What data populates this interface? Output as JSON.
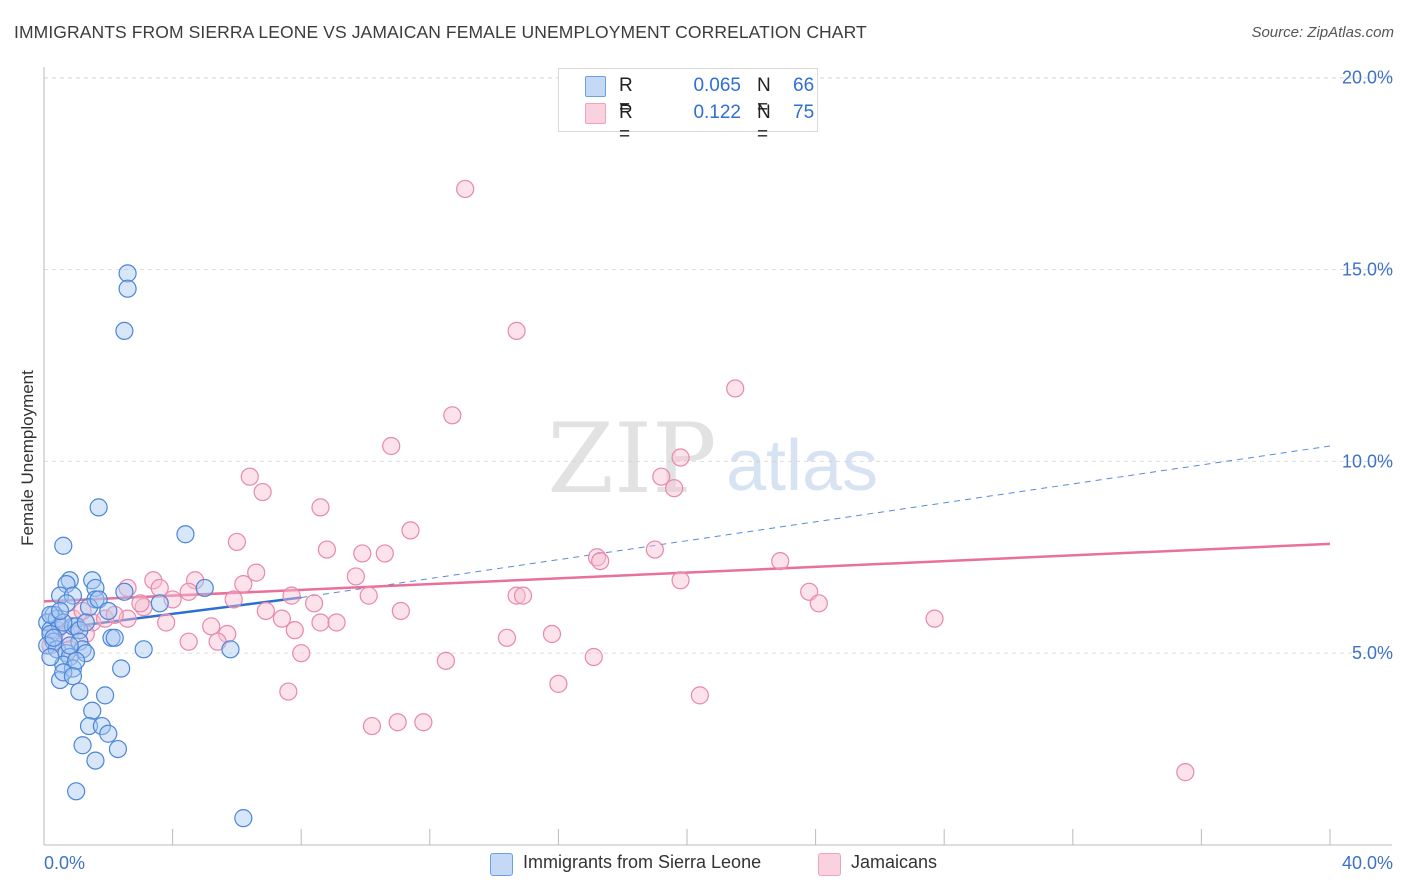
{
  "header": {
    "title": "IMMIGRANTS FROM SIERRA LEONE VS JAMAICAN FEMALE UNEMPLOYMENT CORRELATION CHART",
    "source": "Source: ZipAtlas.com"
  },
  "watermark": {
    "zip": "ZIP",
    "atlas": "atlas"
  },
  "colors": {
    "blue_fill": "#a9c8f2",
    "blue_stroke": "#4a86d8",
    "blue_line": "#2d6fd0",
    "pink_fill": "#f6bfd2",
    "pink_stroke": "#e888aa",
    "pink_line": "#e8709a",
    "axis_text": "#3d72c8",
    "grid": "#dddddd"
  },
  "legend": {
    "rows": [
      {
        "r_label": "R =",
        "r_value": "0.065",
        "n_label": "N =",
        "n_value": "66"
      },
      {
        "r_label": "R =",
        "r_value": "0.122",
        "n_label": "N =",
        "n_value": "75"
      }
    ],
    "bottom": [
      "Immigrants from Sierra Leone",
      "Jamaicans"
    ]
  },
  "chart_data": {
    "type": "scatter",
    "title": "IMMIGRANTS FROM SIERRA LEONE VS JAMAICAN FEMALE UNEMPLOYMENT CORRELATION CHART",
    "xlabel": "",
    "ylabel": "Female Unemployment",
    "xlim": [
      0,
      40
    ],
    "ylim": [
      0,
      20.8
    ],
    "x_tick_labels": [
      "0.0%",
      "40.0%"
    ],
    "y_ticks": [
      5,
      10,
      15,
      20
    ],
    "y_tick_labels": [
      "5.0%",
      "10.0%",
      "15.0%",
      "20.0%"
    ],
    "grid": true,
    "legend_position": "top-center",
    "series": [
      {
        "name": "Immigrants from Sierra Leone",
        "r": 0.065,
        "n": 66,
        "trend": {
          "x": [
            0,
            8.0
          ],
          "y": [
            5.6,
            6.45
          ],
          "dashed_extension": {
            "x": [
              8.0,
              40.0
            ],
            "y": [
              6.45,
              10.4
            ]
          }
        },
        "points": [
          [
            2.6,
            14.9
          ],
          [
            2.6,
            14.5
          ],
          [
            2.5,
            13.4
          ],
          [
            1.7,
            8.8
          ],
          [
            0.6,
            7.8
          ],
          [
            4.4,
            8.1
          ],
          [
            0.8,
            6.9
          ],
          [
            1.5,
            6.9
          ],
          [
            0.7,
            6.8
          ],
          [
            1.6,
            6.7
          ],
          [
            2.5,
            6.6
          ],
          [
            5.0,
            6.7
          ],
          [
            0.5,
            6.5
          ],
          [
            0.9,
            6.5
          ],
          [
            1.6,
            6.4
          ],
          [
            0.7,
            6.3
          ],
          [
            1.4,
            6.2
          ],
          [
            3.6,
            6.3
          ],
          [
            0.3,
            6.0
          ],
          [
            0.1,
            5.8
          ],
          [
            0.2,
            5.6
          ],
          [
            0.4,
            5.9
          ],
          [
            0.5,
            5.7
          ],
          [
            0.9,
            5.7
          ],
          [
            1.0,
            5.7
          ],
          [
            1.1,
            5.6
          ],
          [
            0.2,
            5.5
          ],
          [
            0.3,
            5.3
          ],
          [
            0.1,
            5.2
          ],
          [
            0.4,
            5.1
          ],
          [
            1.1,
            5.3
          ],
          [
            1.2,
            5.1
          ],
          [
            0.7,
            5.0
          ],
          [
            0.8,
            4.9
          ],
          [
            1.3,
            5.0
          ],
          [
            2.1,
            5.4
          ],
          [
            2.2,
            5.4
          ],
          [
            0.6,
            4.7
          ],
          [
            0.9,
            4.6
          ],
          [
            1.0,
            4.8
          ],
          [
            0.5,
            4.3
          ],
          [
            0.6,
            4.5
          ],
          [
            0.9,
            4.4
          ],
          [
            2.4,
            4.6
          ],
          [
            3.1,
            5.1
          ],
          [
            5.8,
            5.1
          ],
          [
            1.1,
            4.0
          ],
          [
            1.9,
            3.9
          ],
          [
            1.5,
            3.5
          ],
          [
            1.4,
            3.1
          ],
          [
            1.8,
            3.1
          ],
          [
            2.0,
            2.9
          ],
          [
            1.2,
            2.6
          ],
          [
            2.3,
            2.5
          ],
          [
            1.6,
            2.2
          ],
          [
            1.0,
            1.4
          ],
          [
            6.2,
            0.7
          ],
          [
            0.2,
            6.0
          ],
          [
            0.6,
            5.8
          ],
          [
            1.3,
            5.8
          ],
          [
            0.3,
            5.4
          ],
          [
            0.8,
            5.2
          ],
          [
            0.5,
            6.1
          ],
          [
            1.7,
            6.4
          ],
          [
            2.0,
            6.1
          ],
          [
            0.2,
            4.9
          ]
        ]
      },
      {
        "name": "Jamaicans",
        "r": 0.122,
        "n": 75,
        "trend": {
          "x": [
            0,
            40.0
          ],
          "y": [
            6.35,
            7.85
          ]
        },
        "points": [
          [
            13.1,
            17.1
          ],
          [
            14.7,
            13.4
          ],
          [
            21.5,
            11.9
          ],
          [
            12.7,
            11.2
          ],
          [
            10.8,
            10.4
          ],
          [
            19.8,
            10.1
          ],
          [
            6.4,
            9.6
          ],
          [
            19.2,
            9.6
          ],
          [
            19.6,
            9.3
          ],
          [
            6.8,
            9.2
          ],
          [
            8.6,
            8.8
          ],
          [
            11.4,
            8.2
          ],
          [
            6.0,
            7.9
          ],
          [
            8.8,
            7.7
          ],
          [
            9.9,
            7.6
          ],
          [
            10.6,
            7.6
          ],
          [
            17.2,
            7.5
          ],
          [
            17.3,
            7.4
          ],
          [
            22.9,
            7.4
          ],
          [
            19.0,
            7.7
          ],
          [
            6.6,
            7.1
          ],
          [
            9.7,
            7.0
          ],
          [
            3.4,
            6.9
          ],
          [
            4.7,
            6.9
          ],
          [
            3.6,
            6.7
          ],
          [
            6.2,
            6.8
          ],
          [
            2.6,
            6.7
          ],
          [
            4.5,
            6.6
          ],
          [
            5.9,
            6.4
          ],
          [
            7.7,
            6.5
          ],
          [
            10.1,
            6.5
          ],
          [
            14.7,
            6.5
          ],
          [
            14.9,
            6.5
          ],
          [
            19.8,
            6.9
          ],
          [
            23.8,
            6.6
          ],
          [
            24.1,
            6.3
          ],
          [
            3.1,
            6.2
          ],
          [
            8.4,
            6.3
          ],
          [
            11.1,
            6.1
          ],
          [
            0.9,
            5.9
          ],
          [
            1.5,
            5.8
          ],
          [
            1.9,
            5.9
          ],
          [
            2.6,
            5.9
          ],
          [
            3.8,
            5.8
          ],
          [
            5.2,
            5.7
          ],
          [
            7.4,
            5.9
          ],
          [
            8.6,
            5.8
          ],
          [
            9.1,
            5.8
          ],
          [
            0.4,
            5.6
          ],
          [
            0.7,
            5.5
          ],
          [
            1.3,
            5.5
          ],
          [
            5.7,
            5.5
          ],
          [
            7.8,
            5.6
          ],
          [
            14.4,
            5.4
          ],
          [
            15.8,
            5.5
          ],
          [
            27.7,
            5.9
          ],
          [
            4.5,
            5.3
          ],
          [
            5.4,
            5.3
          ],
          [
            0.2,
            5.2
          ],
          [
            0.8,
            5.1
          ],
          [
            8.0,
            5.0
          ],
          [
            12.5,
            4.8
          ],
          [
            17.1,
            4.9
          ],
          [
            7.6,
            4.0
          ],
          [
            16.0,
            4.2
          ],
          [
            20.4,
            3.9
          ],
          [
            10.2,
            3.1
          ],
          [
            11.0,
            3.2
          ],
          [
            11.8,
            3.2
          ],
          [
            35.5,
            1.9
          ],
          [
            1.2,
            6.1
          ],
          [
            2.2,
            6.0
          ],
          [
            4.0,
            6.4
          ],
          [
            3.0,
            6.3
          ],
          [
            6.9,
            6.1
          ]
        ]
      }
    ]
  }
}
